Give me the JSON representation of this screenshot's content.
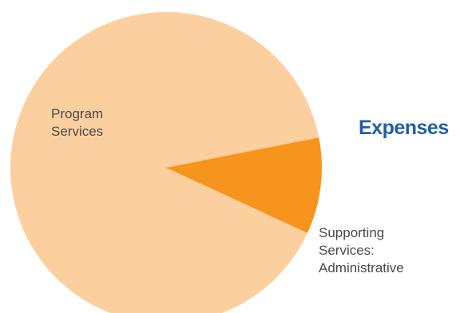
{
  "chart_data": {
    "type": "pie",
    "title": "Expenses",
    "slices": [
      {
        "label_lines": [
          "Program",
          "Services"
        ],
        "value": 90,
        "color": "#fbd09e"
      },
      {
        "label_lines": [
          "Supporting",
          "Services:",
          "Administrative"
        ],
        "value": 10,
        "color": "#f7941d"
      }
    ],
    "legend": "none"
  }
}
